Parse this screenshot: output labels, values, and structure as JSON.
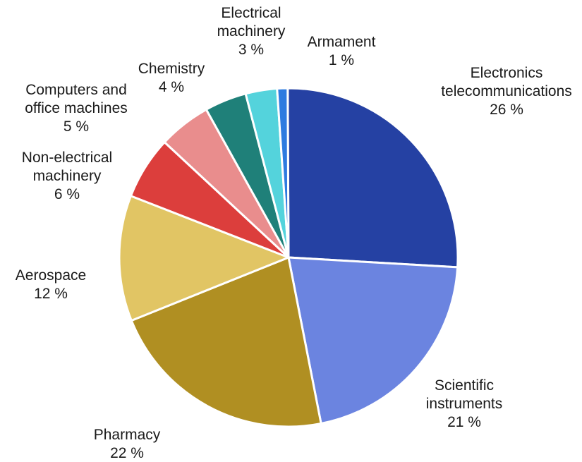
{
  "chart_data": {
    "type": "pie",
    "title": "",
    "slices": [
      {
        "label": [
          "Electronics",
          "telecommunications"
        ],
        "value_label": "26 %",
        "value": 26,
        "color": "#2541a3"
      },
      {
        "label": [
          "Scientific",
          "instruments"
        ],
        "value_label": "21 %",
        "value": 21,
        "color": "#6b84e0"
      },
      {
        "label": [
          "Pharmacy"
        ],
        "value_label": "22 %",
        "value": 22,
        "color": "#b08f22"
      },
      {
        "label": [
          "Aerospace"
        ],
        "value_label": "12 %",
        "value": 12,
        "color": "#e1c564"
      },
      {
        "label": [
          "Non-electrical",
          "machinery"
        ],
        "value_label": "6 %",
        "value": 6,
        "color": "#dc3e3c"
      },
      {
        "label": [
          "Computers and",
          "office machines"
        ],
        "value_label": "5 %",
        "value": 5,
        "color": "#e98d8d"
      },
      {
        "label": [
          "Chemistry"
        ],
        "value_label": "4 %",
        "value": 4,
        "color": "#1f8079"
      },
      {
        "label": [
          "Electrical",
          "machinery"
        ],
        "value_label": "3 %",
        "value": 3,
        "color": "#54d3dc"
      },
      {
        "label": [
          "Armament"
        ],
        "value_label": "1 %",
        "value": 1,
        "color": "#2e7be0"
      }
    ]
  }
}
